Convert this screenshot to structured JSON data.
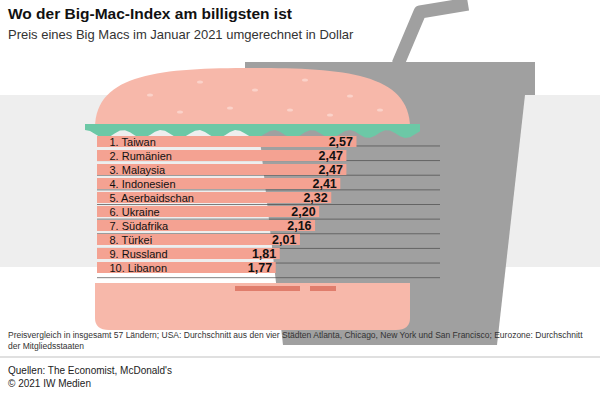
{
  "chart_data": {
    "type": "bar",
    "orientation": "horizontal",
    "title": "Wo der Big-Mac-Index am billigsten ist",
    "subtitle": "Preis eines Big Macs im Januar 2021 umgerechnet in Dollar",
    "categories": [
      "1. Taiwan",
      "2. Rumänien",
      "3. Malaysia",
      "4. Indonesien",
      "5. Aserbaidschan",
      "6. Ukraine",
      "7. Südafrika",
      "8. Türkei",
      "9. Russland",
      "10. Libanon"
    ],
    "values": [
      2.57,
      2.47,
      2.47,
      2.41,
      2.32,
      2.2,
      2.16,
      2.01,
      1.81,
      1.77
    ],
    "value_labels": [
      "2,57",
      "2,47",
      "2,47",
      "2,41",
      "2,32",
      "2,20",
      "2,16",
      "2,01",
      "1,81",
      "1,77"
    ],
    "color": "#f4a292",
    "xlim": [
      0,
      3.1
    ],
    "data_labels": true,
    "tick_labels": false,
    "notes": "Preisvergleich in insgesamt 57 Ländern; USA: Durchschnitt aus den vier Städten Atlanta, Chicago, New York und San Francisco; Eurozone: Durchschnitt der Mitgliedsstaaten",
    "source": [
      "Quellen: The Economist, McDonald's",
      "© 2021 IW Medien"
    ]
  }
}
